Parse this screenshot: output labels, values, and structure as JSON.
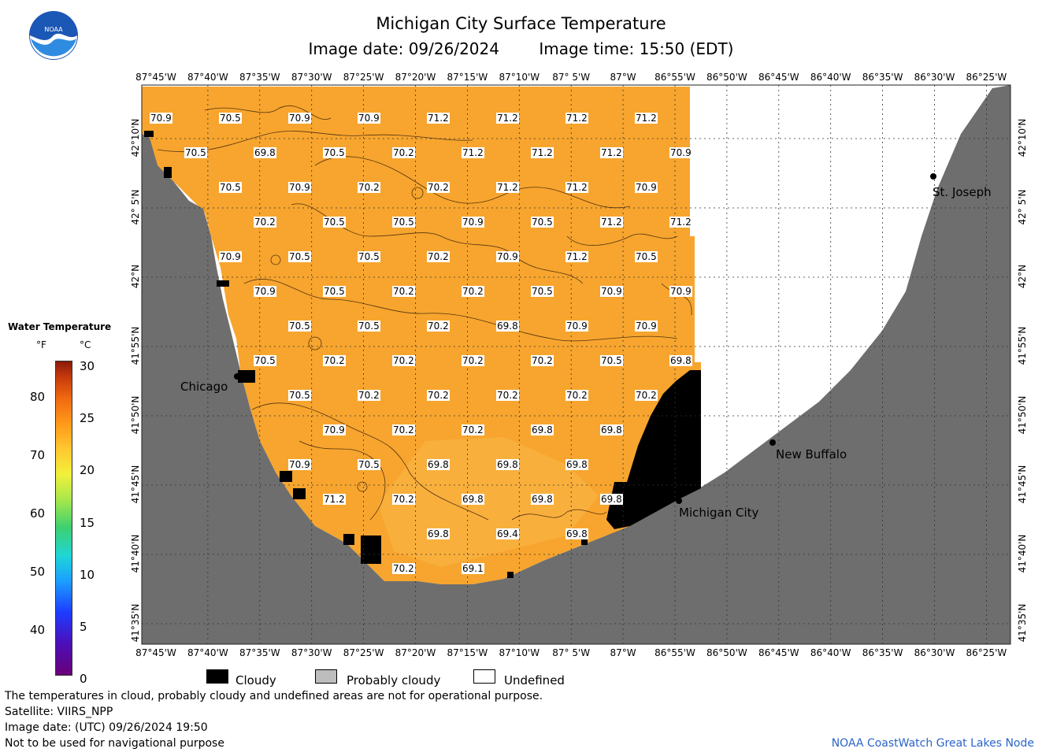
{
  "header": {
    "title": "Michigan City Surface Temperature",
    "image_date": "Image date: 09/26/2024",
    "image_time": "Image time: 15:50 (EDT)"
  },
  "logo": {
    "text": "NOAA",
    "icon": "noaa-logo"
  },
  "map": {
    "lon_ticks": [
      "87°45'W",
      "87°40'W",
      "87°35'W",
      "87°30'W",
      "87°25'W",
      "87°20'W",
      "87°15'W",
      "87°10'W",
      "87° 5'W",
      "87°W",
      "86°55'W",
      "86°50'W",
      "86°45'W",
      "86°40'W",
      "86°35'W",
      "86°30'W",
      "86°25'W"
    ],
    "lat_ticks": [
      "42°10'N",
      "42° 5'N",
      "42°N",
      "41°55'N",
      "41°50'N",
      "41°45'N",
      "41°40'N",
      "41°35'N"
    ],
    "colors": {
      "water": "#f7a52e",
      "land": "#6e6e6e",
      "cloud": "#000000",
      "undefined": "#ffffff"
    },
    "cities": [
      {
        "name": "Chicago"
      },
      {
        "name": "Michigan City"
      },
      {
        "name": "New Buffalo"
      },
      {
        "name": "St. Joseph"
      }
    ],
    "temperature_labels_f": [
      [
        "70.9",
        "70.5",
        "70.9",
        "70.9",
        "71.2",
        "71.2",
        "71.2",
        "71.2"
      ],
      [
        "70.5",
        "69.8",
        "70.5",
        "70.2",
        "71.2",
        "71.2",
        "71.2",
        "70.9"
      ],
      [
        "70.5",
        "70.9",
        "70.2",
        "70.2",
        "71.2",
        "71.2",
        "70.9"
      ],
      [
        "70.2",
        "70.5",
        "70.5",
        "70.9",
        "70.5",
        "71.2",
        "71.2"
      ],
      [
        "70.9",
        "70.5",
        "70.5",
        "70.2",
        "70.9",
        "71.2",
        "70.5"
      ],
      [
        "70.9",
        "70.5",
        "70.2",
        "70.2",
        "70.5",
        "70.9",
        "70.9"
      ],
      [
        "70.5",
        "70.5",
        "70.2",
        "69.8",
        "70.9",
        "70.9"
      ],
      [
        "70.5",
        "70.2",
        "70.2",
        "70.2",
        "70.2",
        "70.5",
        "69.8"
      ],
      [
        "70.5",
        "70.2",
        "70.2",
        "70.2",
        "70.2",
        "70.2"
      ],
      [
        "70.9",
        "70.2",
        "70.2",
        "69.8",
        "69.8"
      ],
      [
        "70.9",
        "70.5",
        "69.8",
        "69.8",
        "69.8"
      ],
      [
        "71.2",
        "70.2",
        "69.8",
        "69.8",
        "69.8"
      ],
      [
        "69.8",
        "69.4",
        "69.8"
      ],
      [
        "70.2",
        "69.1"
      ]
    ]
  },
  "legend": {
    "title": "Water Temperature",
    "unit_f": "°F",
    "unit_c": "°C",
    "f_ticks": [
      "80",
      "70",
      "60",
      "50",
      "40"
    ],
    "c_ticks": [
      "30",
      "25",
      "20",
      "15",
      "10",
      "5",
      "0"
    ]
  },
  "key": {
    "cloudy": "Cloudy",
    "probably_cloudy": "Probably cloudy",
    "undefined": "Undefined",
    "colors": {
      "cloudy": "#000000",
      "probably_cloudy": "#bdbdbd",
      "undefined": "#ffffff"
    }
  },
  "footer": {
    "note1": "The temperatures in cloud, probably cloudy and undefined areas are not for operational purpose.",
    "satellite": "Satellite: VIIRS_NPP",
    "utc_date": "Image date: (UTC) 09/26/2024  19:50",
    "nav_warning": "Not to be used for navigational purpose",
    "credit": "NOAA CoastWatch Great Lakes Node"
  }
}
